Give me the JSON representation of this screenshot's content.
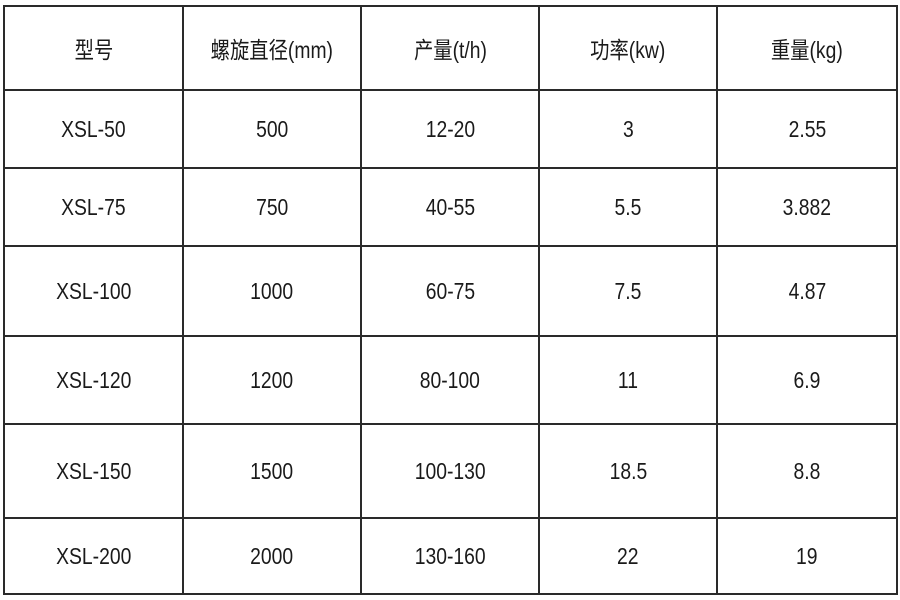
{
  "table": {
    "headers": [
      "型号",
      "螺旋直径(mm)",
      "产量(t/h)",
      "功率(kw)",
      "重量(kg)"
    ],
    "rows": [
      [
        "XSL-50",
        "500",
        "12-20",
        "3",
        "2.55"
      ],
      [
        "XSL-75",
        "750",
        "40-55",
        "5.5",
        "3.882"
      ],
      [
        "XSL-100",
        "1000",
        "60-75",
        "7.5",
        "4.87"
      ],
      [
        "XSL-120",
        "1200",
        "80-100",
        "11",
        "6.9"
      ],
      [
        "XSL-150",
        "1500",
        "100-130",
        "18.5",
        "8.8"
      ],
      [
        "XSL-200",
        "2000",
        "130-160",
        "22",
        "19"
      ]
    ]
  }
}
